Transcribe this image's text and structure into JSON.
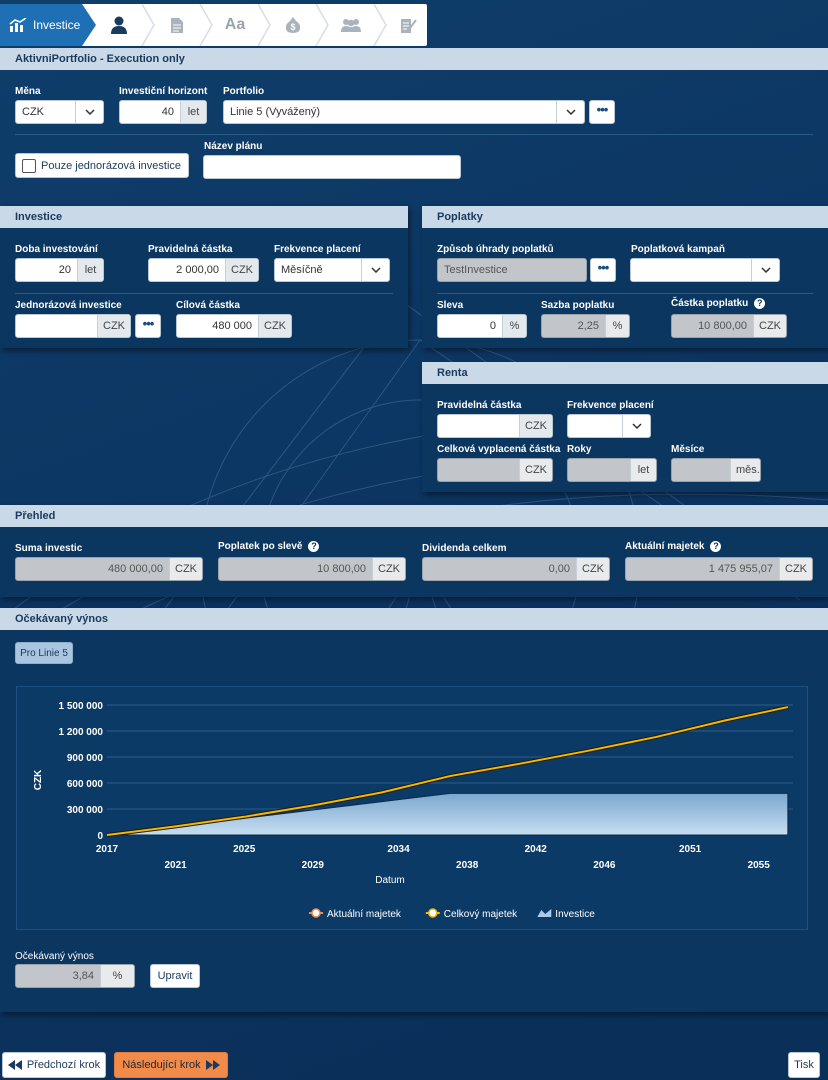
{
  "wizard": {
    "steps": [
      {
        "label": "Investice",
        "icon": "chart-icon"
      },
      {
        "icon": "person-icon"
      },
      {
        "icon": "document-icon"
      },
      {
        "label": "Aa",
        "icon": "text-icon"
      },
      {
        "icon": "money-icon"
      },
      {
        "icon": "group-icon"
      },
      {
        "icon": "sign-document-icon"
      }
    ]
  },
  "header": {
    "title": "AktivniPortfolio - Execution only"
  },
  "top": {
    "mena_label": "Měna",
    "mena_value": "CZK",
    "horizont_label": "Investiční horizont",
    "horizont_value": "40",
    "horizont_unit": "let",
    "portfolio_label": "Portfolio",
    "portfolio_value": "Linie 5 (Vyvážený)",
    "jednorazova_label": "Pouze jednorázová investice",
    "nazev_label": "Název plánu",
    "nazev_value": ""
  },
  "investice": {
    "title": "Investice",
    "doba_label": "Doba investování",
    "doba_value": "20",
    "doba_unit": "let",
    "pravidelna_label": "Pravidelná částka",
    "pravidelna_value": "2 000,00",
    "pravidelna_unit": "CZK",
    "frekvence_label": "Frekvence placení",
    "frekvence_value": "Měsíčně",
    "jednorazova_label": "Jednorázová investice",
    "jednorazova_value": "",
    "jednorazova_unit": "CZK",
    "cilova_label": "Cílová částka",
    "cilova_value": "480 000",
    "cilova_unit": "CZK"
  },
  "poplatky": {
    "title": "Poplatky",
    "zpusob_label": "Způsob úhrady poplatků",
    "zpusob_value": "TestInvestice",
    "kampan_label": "Poplatková kampaň",
    "kampan_value": "",
    "sleva_label": "Sleva",
    "sleva_value": "0",
    "sleva_unit": "%",
    "sazba_label": "Sazba poplatku",
    "sazba_value": "2,25",
    "sazba_unit": "%",
    "castka_label": "Částka poplatku",
    "castka_value": "10 800,00",
    "castka_unit": "CZK"
  },
  "renta": {
    "title": "Renta",
    "pravidelna_label": "Pravidelná částka",
    "pravidelna_value": "",
    "pravidelna_unit": "CZK",
    "frekvence_label": "Frekvence placení",
    "frekvence_value": "",
    "celkova_label": "Celková vyplacená částka",
    "celkova_value": "",
    "celkova_unit": "CZK",
    "roky_label": "Roky",
    "roky_value": "",
    "roky_unit": "let",
    "mesice_label": "Měsíce",
    "mesice_value": "",
    "mesice_unit": "měs."
  },
  "prehled": {
    "title": "Přehled",
    "suma_label": "Suma investic",
    "suma_value": "480 000,00",
    "suma_unit": "CZK",
    "poplatek_label": "Poplatek po slevě",
    "poplatek_value": "10 800,00",
    "poplatek_unit": "CZK",
    "dividenda_label": "Dividenda celkem",
    "dividenda_value": "0,00",
    "dividenda_unit": "CZK",
    "majetek_label": "Aktuální majetek",
    "majetek_value": "1 475 955,07",
    "majetek_unit": "CZK"
  },
  "vynos": {
    "title": "Očekávaný výnos",
    "tab_label": "Pro Linie 5",
    "ocekavany_label": "Očekávaný výnos",
    "ocekavany_value": "3,84",
    "ocekavany_unit": "%",
    "upravit_label": "Upravit"
  },
  "chart_data": {
    "type": "line",
    "xlabel": "Datum",
    "ylabel": "CZK",
    "xlim": [
      2017,
      2057
    ],
    "ylim": [
      0,
      1500000
    ],
    "xticks": [
      2017,
      2021,
      2025,
      2029,
      2034,
      2038,
      2042,
      2046,
      2051,
      2055
    ],
    "yticks": [
      0,
      300000,
      600000,
      900000,
      1200000,
      1500000
    ],
    "ytick_labels": [
      "0",
      "300 000",
      "600 000",
      "900 000",
      "1 200 000",
      "1 500 000"
    ],
    "grid": true,
    "legend_position": "bottom",
    "series": [
      {
        "name": "Aktuální majetek",
        "color": "#ffffff",
        "x": [
          2017,
          2021,
          2025,
          2029,
          2033,
          2037,
          2041,
          2045,
          2049,
          2053,
          2056.7
        ],
        "values": [
          0,
          100000,
          210000,
          340000,
          490000,
          680000,
          820000,
          970000,
          1130000,
          1320000,
          1476000
        ]
      },
      {
        "name": "Celkový majetek",
        "color": "#f5b800",
        "x": [
          2017,
          2021,
          2025,
          2029,
          2033,
          2037,
          2041,
          2045,
          2049,
          2053,
          2056.7
        ],
        "values": [
          0,
          100000,
          210000,
          340000,
          490000,
          680000,
          820000,
          970000,
          1130000,
          1320000,
          1476000
        ]
      },
      {
        "name": "Investice",
        "color": "#8fb8da",
        "x": [
          2017,
          2037,
          2037.01,
          2056.7
        ],
        "values": [
          0,
          480000,
          480000,
          480000
        ]
      }
    ]
  },
  "footer": {
    "prev_label": "Předchozí krok",
    "next_label": "Následující krok",
    "print_label": "Tisk"
  }
}
